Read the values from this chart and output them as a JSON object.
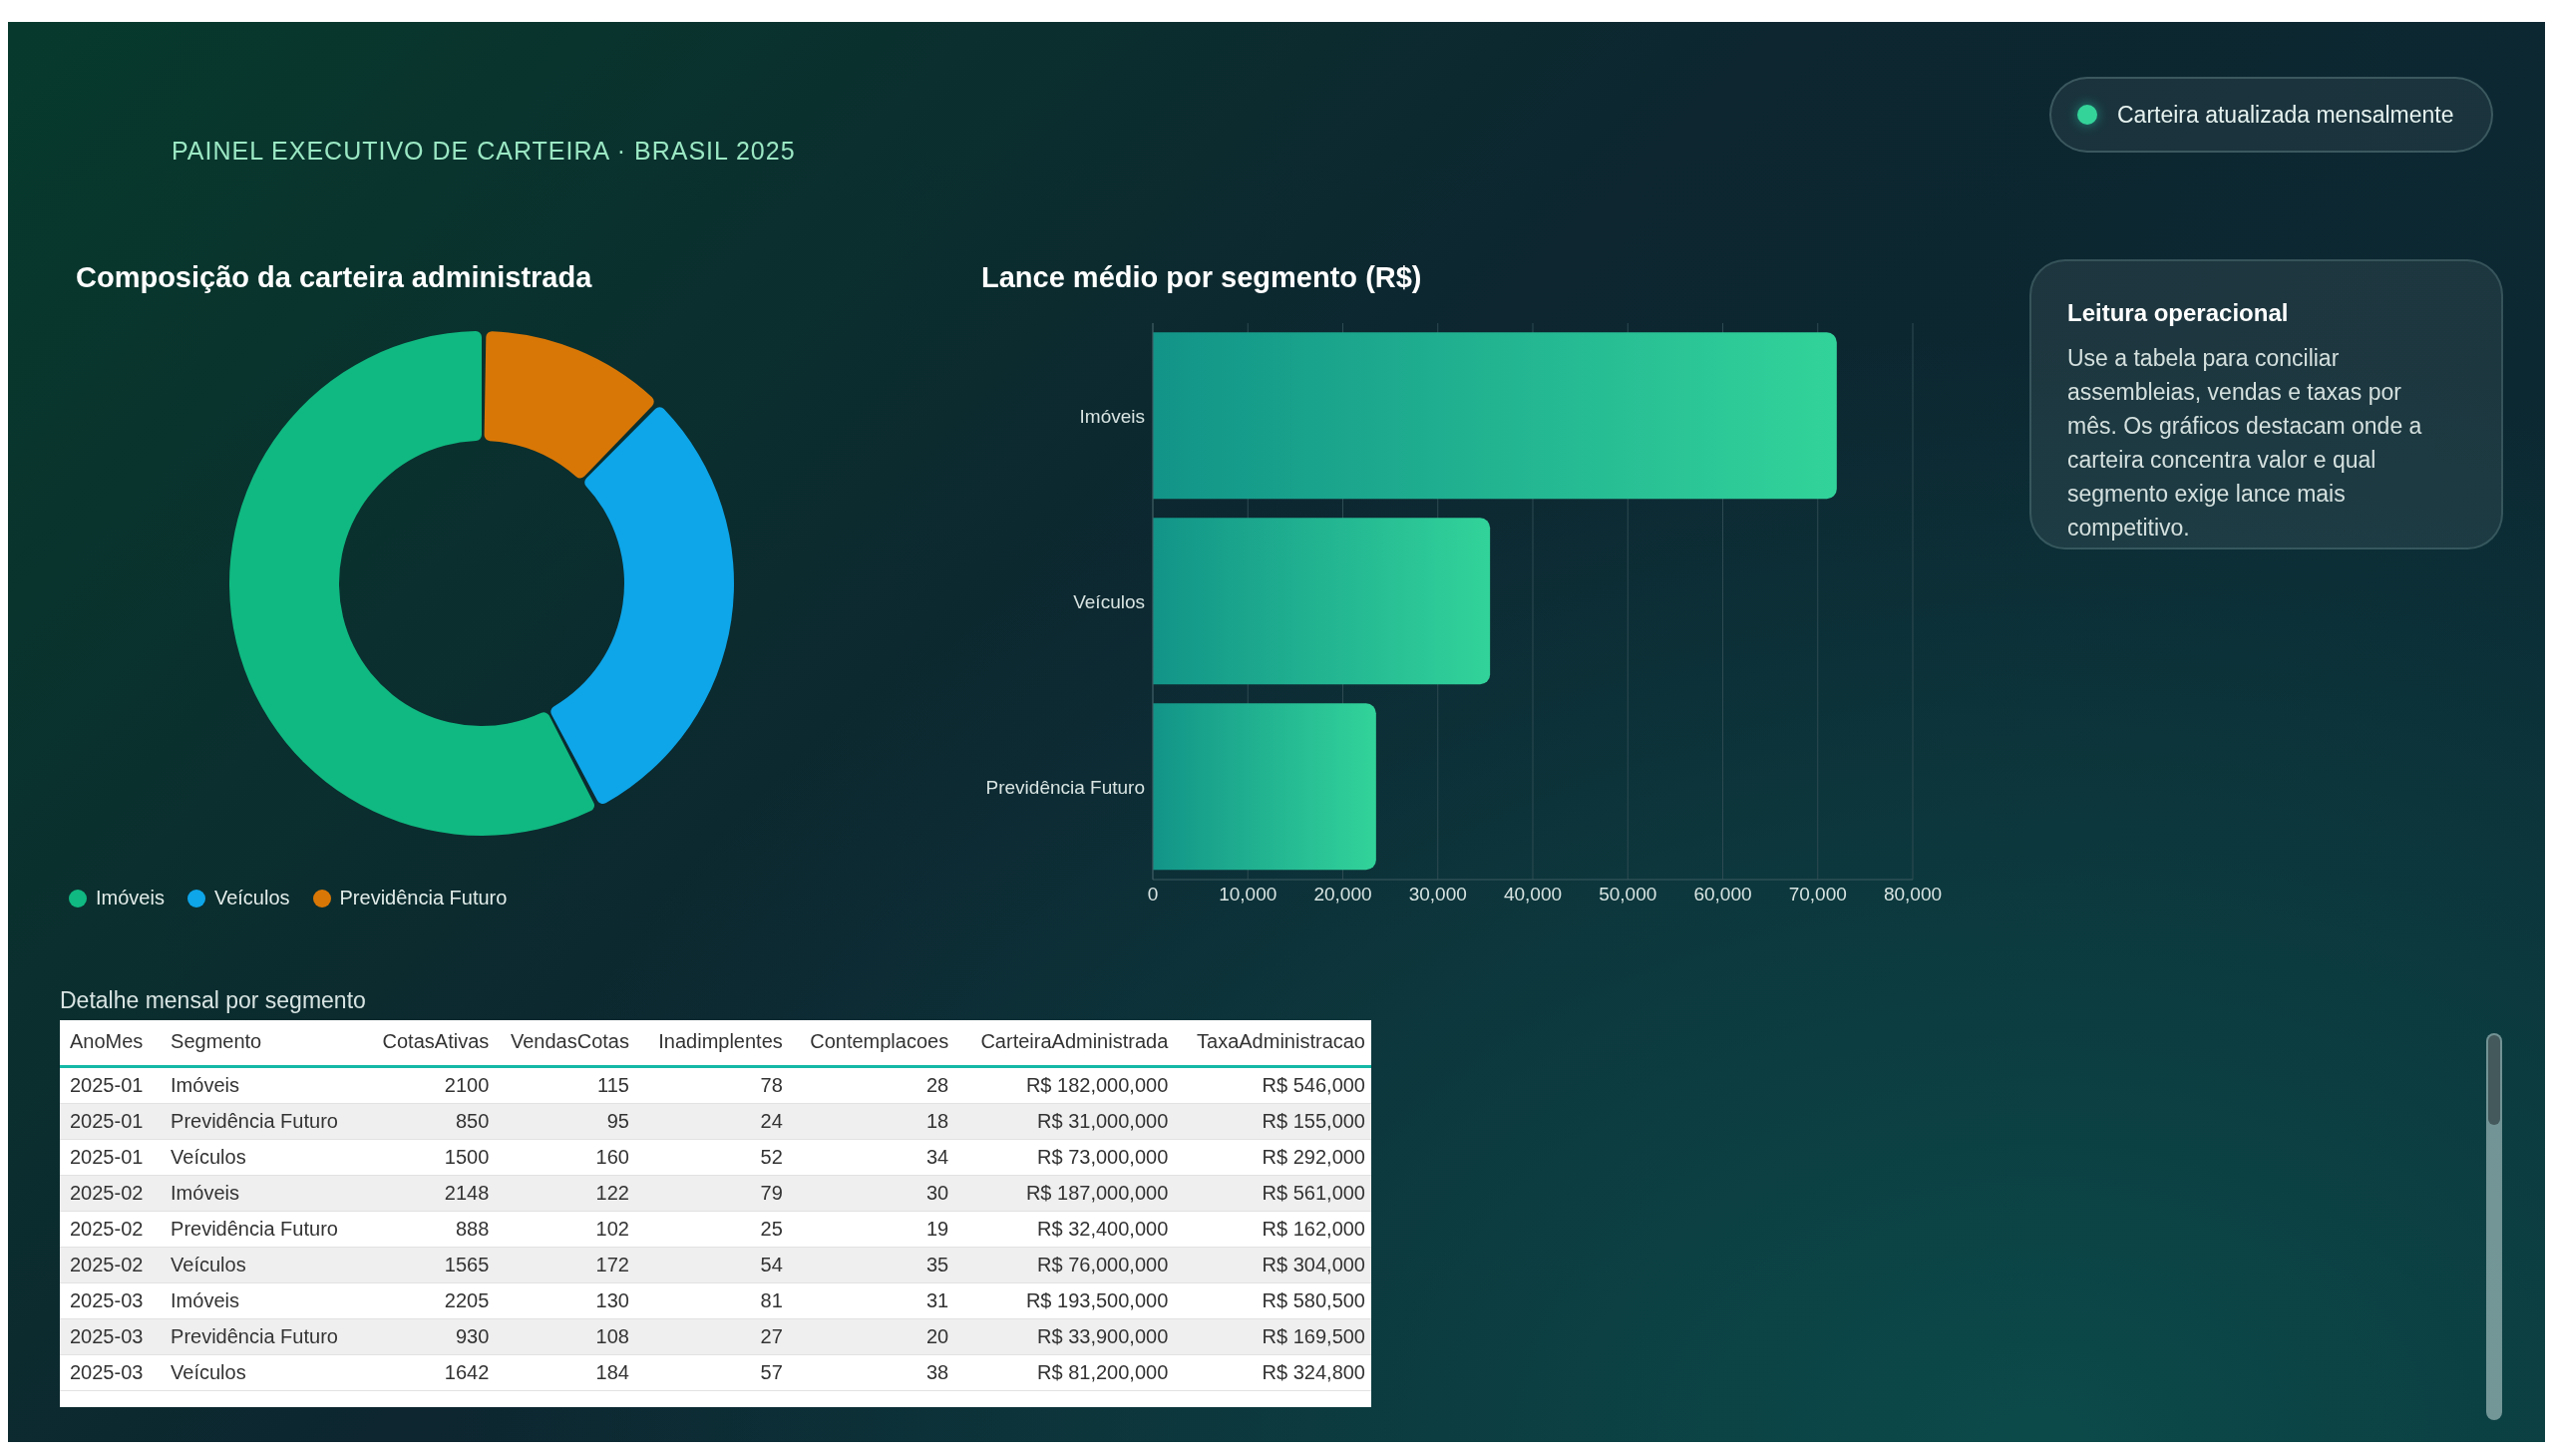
{
  "chart_data": [
    {
      "type": "other",
      "subtitle": "PAINEL EXECUTIVO DE CARTEIRA · BRASIL 2025",
      "annotations": [
        "Carteira atualizada mensalmente"
      ]
    },
    {
      "type": "donut",
      "title": "Composição da carteira administrada",
      "categories": [
        "Imóveis",
        "Veículos",
        "Previdência Futuro"
      ],
      "values": [
        58,
        30,
        12
      ],
      "colors": [
        "#10b981",
        "#0ea5e9",
        "#d97706"
      ],
      "legend": "bottom left"
    },
    {
      "type": "bar",
      "title": "Lance médio por segmento (R$)",
      "orientation": "horizontal",
      "categories": [
        "Imóveis",
        "Veículos",
        "Previdência Futuro"
      ],
      "values": [
        72000,
        35500,
        23500
      ],
      "color": "#32d39a",
      "xlim": [
        0,
        80000
      ],
      "xticks": [
        0,
        {
          "value": 10000,
          "label": "10,000"
        },
        {
          "value": 20000,
          "label": "20,000"
        },
        {
          "value": 30000,
          "label": "30,000"
        },
        {
          "value": 40000,
          "label": "40,000"
        },
        {
          "value": 50000,
          "label": "50,000"
        },
        {
          "value": 60000,
          "label": "60,000"
        },
        {
          "value": 70000,
          "label": "70,000"
        },
        {
          "value": 80000,
          "label": "80,000"
        }
      ],
      "grid": "x"
    },
    {
      "type": "other",
      "title": "Leitura operacional",
      "annotations": [
        "Use a tabela para conciliar assembleias, vendas e taxas por mês. Os gráficos destacam onde a carteira concentra valor e qual segmento exige lance mais competitivo."
      ]
    },
    {
      "type": "other",
      "title": "Detalhe mensal por segmento",
      "categories": [
        "AnoMes",
        "Segmento",
        "CotasAtivas",
        "VendasCotas",
        "Inadimplentes",
        "Contemplacoes",
        "CarteiraAdministrada",
        "TaxaAdministracao"
      ],
      "cell_labels": [
        [
          "2025-01",
          "Imóveis",
          "2100",
          "115",
          "78",
          "28",
          "R$ 182,000,000",
          "R$ 546,000"
        ],
        [
          "2025-01",
          "Previdência Futuro",
          "850",
          "95",
          "24",
          "18",
          "R$ 31,000,000",
          "R$ 155,000"
        ],
        [
          "2025-01",
          "Veículos",
          "1500",
          "160",
          "52",
          "34",
          "R$ 73,000,000",
          "R$ 292,000"
        ],
        [
          "2025-02",
          "Imóveis",
          "2148",
          "122",
          "79",
          "30",
          "R$ 187,000,000",
          "R$ 561,000"
        ],
        [
          "2025-02",
          "Previdência Futuro",
          "888",
          "102",
          "25",
          "19",
          "R$ 32,400,000",
          "R$ 162,000"
        ],
        [
          "2025-02",
          "Veículos",
          "1565",
          "172",
          "54",
          "35",
          "R$ 76,000,000",
          "R$ 304,000"
        ],
        [
          "2025-03",
          "Imóveis",
          "2205",
          "130",
          "81",
          "31",
          "R$ 193,500,000",
          "R$ 580,500"
        ],
        [
          "2025-03",
          "Previdência Futuro",
          "930",
          "108",
          "27",
          "20",
          "R$ 33,900,000",
          "R$ 169,500"
        ],
        [
          "2025-03",
          "Veículos",
          "1642",
          "184",
          "57",
          "38",
          "R$ 81,200,000",
          "R$ 324,800"
        ]
      ]
    }
  ]
}
